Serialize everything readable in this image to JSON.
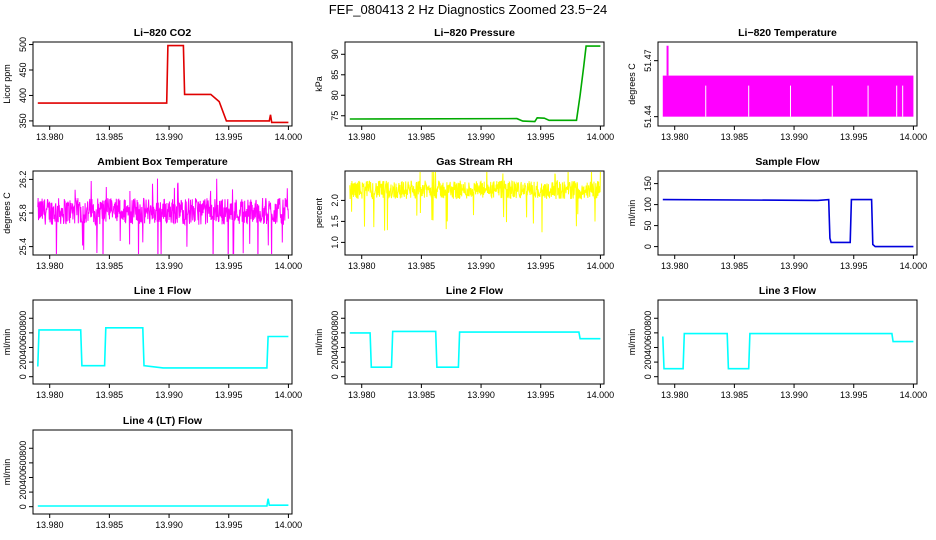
{
  "figure": {
    "title": "FEF_080413  2 Hz Diagnostics Zoomed 23.5−24"
  },
  "chart_data": [
    {
      "type": "line",
      "title": "Li−820 CO2",
      "ylabel": "Licor ppm",
      "xlabel": "",
      "xlim": [
        13.9786,
        14.0003
      ],
      "ylim": [
        340,
        505
      ],
      "x_ticks": [
        "13.980",
        "13.985",
        "13.990",
        "13.995",
        "14.000"
      ],
      "y_ticks": [
        "350",
        "400",
        "450",
        "500"
      ],
      "color": "#e00000",
      "series": [
        {
          "points": [
            [
              13.979,
              385
            ],
            [
              13.9898,
              385
            ],
            [
              13.9899,
              498
            ],
            [
              13.9912,
              498
            ],
            [
              13.9913,
              402
            ],
            [
              13.9935,
              402
            ],
            [
              13.9942,
              388
            ],
            [
              13.9948,
              350
            ],
            [
              13.9984,
              350
            ],
            [
              13.9985,
              362
            ],
            [
              13.9986,
              347
            ],
            [
              14.0,
              347
            ]
          ]
        }
      ]
    },
    {
      "type": "line",
      "title": "Li−820 Pressure",
      "ylabel": "kPa",
      "xlabel": "",
      "xlim": [
        13.9786,
        14.0003
      ],
      "ylim": [
        72.5,
        93
      ],
      "x_ticks": [
        "13.980",
        "13.985",
        "13.990",
        "13.995",
        "14.000"
      ],
      "y_ticks": [
        "75",
        "80",
        "85",
        "90"
      ],
      "color": "#00aa00",
      "series": [
        {
          "points": [
            [
              13.979,
              74.2
            ],
            [
              13.993,
              74.3
            ],
            [
              13.9935,
              73.7
            ],
            [
              13.9945,
              73.6
            ],
            [
              13.9947,
              74.5
            ],
            [
              13.9953,
              74.4
            ],
            [
              13.9957,
              73.9
            ],
            [
              13.998,
              73.9
            ],
            [
              13.9983,
              80
            ],
            [
              13.9986,
              87
            ],
            [
              13.9988,
              92
            ],
            [
              14.0,
              92
            ]
          ]
        }
      ]
    },
    {
      "type": "area",
      "title": "Li−820 Temperature",
      "ylabel": "degrees C",
      "xlabel": "",
      "xlim": [
        13.9786,
        14.0003
      ],
      "ylim": [
        51.435,
        51.48
      ],
      "x_ticks": [
        "13.980",
        "13.985",
        "13.990",
        "13.995",
        "14.000"
      ],
      "y_ticks": [
        "51.44",
        "51.47"
      ],
      "color": "#ff00ff",
      "band": {
        "x": [
          13.979,
          14.0
        ],
        "y": [
          51.44,
          51.462
        ]
      },
      "spike": {
        "x": 13.9794,
        "y": 51.478
      }
    },
    {
      "type": "line",
      "title": "Ambient Box Temperature",
      "ylabel": "degrees C",
      "xlabel": "",
      "xlim": [
        13.9786,
        14.0003
      ],
      "ylim": [
        25.3,
        26.3
      ],
      "x_ticks": [
        "13.980",
        "13.985",
        "13.990",
        "13.995",
        "14.000"
      ],
      "y_ticks": [
        "25.4",
        "25.8",
        "26.2"
      ],
      "color": "#ff00ff",
      "noise": {
        "x": [
          13.979,
          14.0
        ],
        "center": 25.82,
        "amplitude": 0.16,
        "count": 700
      }
    },
    {
      "type": "line",
      "title": "Gas Stream RH",
      "ylabel": "percent",
      "xlabel": "",
      "xlim": [
        13.9786,
        14.0003
      ],
      "ylim": [
        0.7,
        2.7
      ],
      "x_ticks": [
        "13.980",
        "13.985",
        "13.990",
        "13.995",
        "14.000"
      ],
      "y_ticks": [
        "1.0",
        "1.5",
        "2.0"
      ],
      "color": "#ffff00",
      "noise": {
        "x": [
          13.979,
          14.0
        ],
        "center": 2.25,
        "amplitude": 0.22,
        "count": 700
      }
    },
    {
      "type": "line",
      "title": "Sample Flow",
      "ylabel": "ml/min",
      "xlabel": "",
      "xlim": [
        13.9786,
        14.0003
      ],
      "ylim": [
        -20,
        180
      ],
      "x_ticks": [
        "13.980",
        "13.985",
        "13.990",
        "13.995",
        "14.000"
      ],
      "y_ticks": [
        "0",
        "50",
        "100",
        "150"
      ],
      "color": "#0000dd",
      "series": [
        {
          "points": [
            [
              13.979,
              112
            ],
            [
              13.992,
              110
            ],
            [
              13.9929,
              112
            ],
            [
              13.993,
              20
            ],
            [
              13.9931,
              10
            ],
            [
              13.9947,
              10
            ],
            [
              13.9948,
              112
            ],
            [
              13.9965,
              112
            ],
            [
              13.9966,
              5
            ],
            [
              13.9968,
              0
            ],
            [
              14.0,
              0
            ]
          ]
        }
      ]
    },
    {
      "type": "line",
      "title": "Line 1 Flow",
      "ylabel": "ml/min",
      "xlabel": "",
      "xlim": [
        13.9786,
        14.0003
      ],
      "ylim": [
        -100,
        1050
      ],
      "x_ticks": [
        "13.980",
        "13.985",
        "13.990",
        "13.995",
        "14.000"
      ],
      "y_ticks": [
        "0",
        "200",
        "400",
        "600",
        "800"
      ],
      "color": "#00ffff",
      "series": [
        {
          "points": [
            [
              13.979,
              140
            ],
            [
              13.9791,
              640
            ],
            [
              13.9826,
              640
            ],
            [
              13.9827,
              150
            ],
            [
              13.9846,
              150
            ],
            [
              13.9847,
              670
            ],
            [
              13.9878,
              670
            ],
            [
              13.9879,
              150
            ],
            [
              13.9895,
              120
            ],
            [
              13.9982,
              120
            ],
            [
              13.9983,
              550
            ],
            [
              14.0,
              550
            ]
          ]
        }
      ]
    },
    {
      "type": "line",
      "title": "Line 2 Flow",
      "ylabel": "ml/min",
      "xlabel": "",
      "xlim": [
        13.9786,
        14.0003
      ],
      "ylim": [
        -100,
        1050
      ],
      "x_ticks": [
        "13.980",
        "13.985",
        "13.990",
        "13.995",
        "14.000"
      ],
      "y_ticks": [
        "0",
        "200",
        "400",
        "600",
        "800"
      ],
      "color": "#00ffff",
      "series": [
        {
          "points": [
            [
              13.979,
              600
            ],
            [
              13.9807,
              600
            ],
            [
              13.9808,
              130
            ],
            [
              13.9825,
              130
            ],
            [
              13.9826,
              620
            ],
            [
              13.9862,
              620
            ],
            [
              13.9863,
              130
            ],
            [
              13.9881,
              130
            ],
            [
              13.9882,
              610
            ],
            [
              13.9982,
              610
            ],
            [
              13.9983,
              520
            ],
            [
              14.0,
              520
            ]
          ]
        }
      ]
    },
    {
      "type": "line",
      "title": "Line 3 Flow",
      "ylabel": "ml/min",
      "xlabel": "",
      "xlim": [
        13.9786,
        14.0003
      ],
      "ylim": [
        -100,
        1050
      ],
      "x_ticks": [
        "13.980",
        "13.985",
        "13.990",
        "13.995",
        "14.000"
      ],
      "y_ticks": [
        "0",
        "200",
        "400",
        "600",
        "800"
      ],
      "color": "#00ffff",
      "series": [
        {
          "points": [
            [
              13.979,
              550
            ],
            [
              13.9791,
              110
            ],
            [
              13.9807,
              110
            ],
            [
              13.9808,
              590
            ],
            [
              13.9844,
              590
            ],
            [
              13.9845,
              110
            ],
            [
              13.9862,
              110
            ],
            [
              13.9863,
              590
            ],
            [
              13.9982,
              590
            ],
            [
              13.9983,
              480
            ],
            [
              14.0,
              480
            ]
          ]
        }
      ]
    },
    {
      "type": "line",
      "title": "Line 4 (LT) Flow",
      "ylabel": "ml/min",
      "xlabel": "",
      "xlim": [
        13.9786,
        14.0003
      ],
      "ylim": [
        -100,
        1050
      ],
      "x_ticks": [
        "13.980",
        "13.985",
        "13.990",
        "13.995",
        "14.000"
      ],
      "y_ticks": [
        "0",
        "200",
        "400",
        "600",
        "800"
      ],
      "color": "#00ffff",
      "series": [
        {
          "points": [
            [
              13.979,
              10
            ],
            [
              13.9982,
              10
            ],
            [
              13.9983,
              110
            ],
            [
              13.9984,
              20
            ],
            [
              14.0,
              20
            ]
          ]
        }
      ]
    }
  ]
}
